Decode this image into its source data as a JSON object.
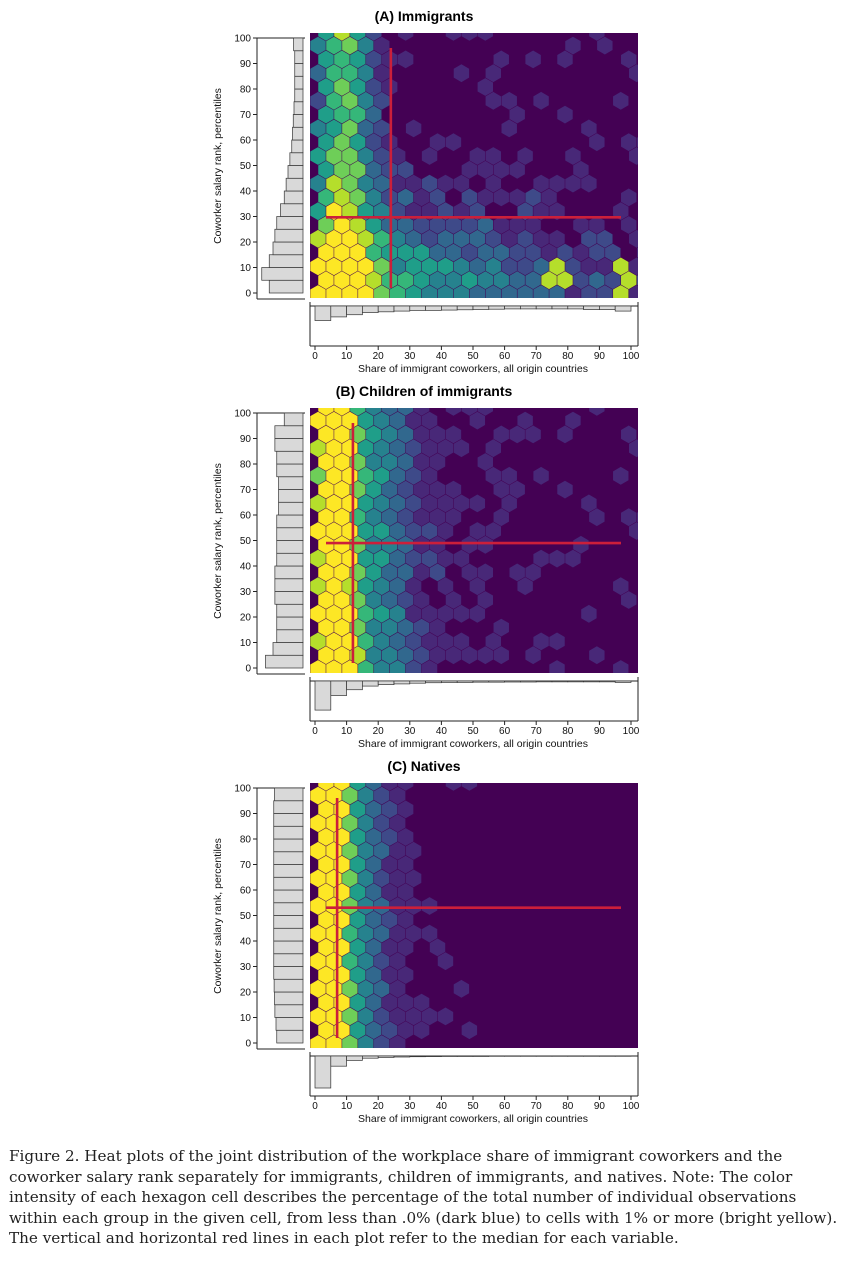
{
  "chart_data": [
    {
      "type": "heatmap",
      "subtype": "hexbin-with-marginal-histograms",
      "title": "(A) Immigrants",
      "xlabel": "Share of immigrant coworkers, all origin countries",
      "ylabel": "Coworker salary rank, percentiles",
      "xlim": [
        0,
        100
      ],
      "ylim": [
        0,
        100
      ],
      "xticks": [
        "0",
        "10",
        "20",
        "30",
        "40",
        "50",
        "60",
        "70",
        "80",
        "90",
        "100"
      ],
      "yticks": [
        "0",
        "10",
        "20",
        "30",
        "40",
        "50",
        "60",
        "70",
        "80",
        "90",
        "100"
      ],
      "median_x": 24,
      "median_y": 30,
      "x_marginal_hist": [
        10,
        7.5,
        6,
        4.5,
        4,
        3.5,
        3,
        3,
        2.8,
        2.6,
        2.4,
        2.2,
        2,
        2,
        2,
        2,
        2,
        2.5,
        2.5,
        3.5
      ],
      "y_marginal_hist": [
        9,
        11,
        9,
        8,
        7.5,
        7,
        6,
        5,
        4.5,
        4,
        3.5,
        3,
        2.8,
        2.6,
        2.4,
        2.2,
        2.2,
        2.2,
        2.2,
        2.5
      ],
      "density_pattern": "dense-left-band-and-bottom-rows"
    },
    {
      "type": "heatmap",
      "subtype": "hexbin-with-marginal-histograms",
      "title": "(B) Children of immigrants",
      "xlabel": "Share of immigrant coworkers, all origin countries",
      "ylabel": "Coworker salary rank, percentiles",
      "xlim": [
        0,
        100
      ],
      "ylim": [
        0,
        100
      ],
      "xticks": [
        "0",
        "10",
        "20",
        "30",
        "40",
        "50",
        "60",
        "70",
        "80",
        "90",
        "100"
      ],
      "yticks": [
        "0",
        "10",
        "20",
        "30",
        "40",
        "50",
        "60",
        "70",
        "80",
        "90",
        "100"
      ],
      "median_x": 12,
      "median_y": 49,
      "x_marginal_hist": [
        20,
        10,
        6,
        3.5,
        2.5,
        2,
        1.5,
        1.2,
        1,
        1,
        0.8,
        0.8,
        0.7,
        0.7,
        0.6,
        0.6,
        0.6,
        0.6,
        0.6,
        1
      ],
      "y_marginal_hist": [
        10,
        8,
        7,
        7,
        7,
        7.5,
        7.5,
        7.5,
        7,
        7,
        7,
        7,
        6.5,
        6.5,
        6.5,
        7,
        7,
        7.5,
        7.5,
        5
      ],
      "density_pattern": "bright-left-column"
    },
    {
      "type": "heatmap",
      "subtype": "hexbin-with-marginal-histograms",
      "title": "(C) Natives",
      "xlabel": "Share of immigrant coworkers, all origin countries",
      "ylabel": "Coworker salary rank, percentiles",
      "xlim": [
        0,
        100
      ],
      "ylim": [
        0,
        100
      ],
      "xticks": [
        "0",
        "10",
        "20",
        "30",
        "40",
        "50",
        "60",
        "70",
        "80",
        "90",
        "100"
      ],
      "yticks": [
        "0",
        "10",
        "20",
        "30",
        "40",
        "50",
        "60",
        "70",
        "80",
        "90",
        "100"
      ],
      "median_x": 7,
      "median_y": 53,
      "x_marginal_hist": [
        22,
        7,
        3,
        1.5,
        1,
        0.7,
        0.5,
        0.4,
        0.3,
        0.3,
        0.3,
        0.2,
        0.2,
        0.2,
        0.2,
        0.2,
        0.2,
        0.2,
        0.2,
        0.2
      ],
      "y_marginal_hist": [
        7,
        7.2,
        7.5,
        7.6,
        7.7,
        7.8,
        7.8,
        7.8,
        7.8,
        7.8,
        7.8,
        7.8,
        7.8,
        7.8,
        7.8,
        7.8,
        7.8,
        7.8,
        7.8,
        7.6
      ],
      "density_pattern": "narrow-bright-left-column"
    }
  ],
  "colors": {
    "background_hex": "#440154",
    "median_line": "#cc1f3a",
    "histogram_fill": "#d9d9d9",
    "histogram_stroke": "#333333",
    "viridis": [
      "#440154",
      "#482878",
      "#3e4a89",
      "#31688e",
      "#26828e",
      "#1f9e89",
      "#35b779",
      "#6ece58",
      "#b5de2b",
      "#fde725"
    ]
  },
  "caption": "Figure 2. Heat plots of the joint distribution of the workplace share of immigrant coworkers and the coworker salary rank separately for immigrants, children of immigrants, and natives. Note: The color intensity of each hexagon cell describes the percentage of the total number of individual observations within each group in the given cell, from less than .0% (dark blue) to cells with 1% or more (bright yellow). The vertical and horizontal red lines in each plot refer to the median for each variable."
}
